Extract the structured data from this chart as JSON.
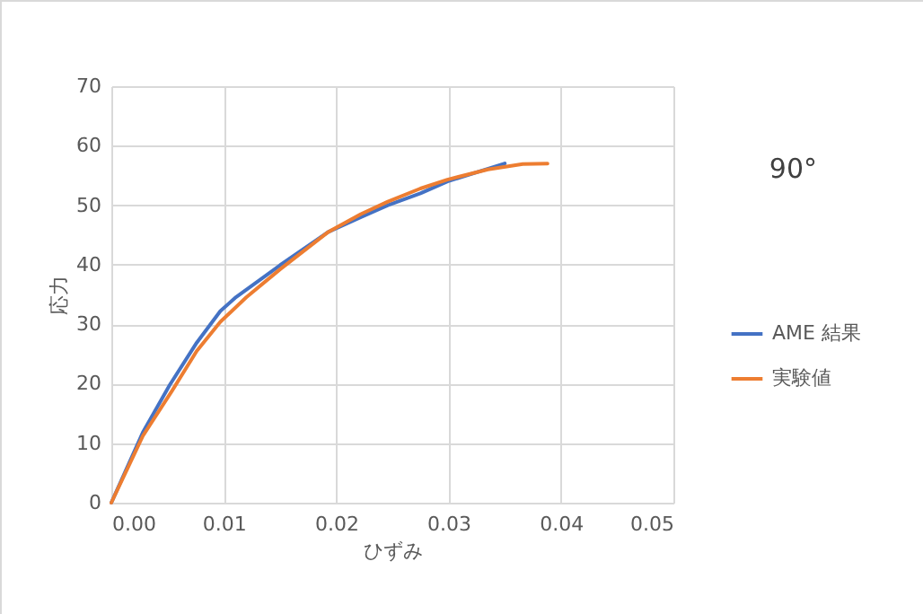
{
  "chart_data": {
    "type": "line",
    "title": "90°",
    "xlabel": "ひずみ",
    "ylabel": "応力",
    "xlim": [
      0,
      0.05
    ],
    "xticks": [
      {
        "value": 0,
        "label": "0.00"
      },
      {
        "value": 0.01,
        "label": "0.01"
      },
      {
        "value": 0.02,
        "label": "0.02"
      },
      {
        "value": 0.03,
        "label": "0.03"
      },
      {
        "value": 0.04,
        "label": "0.04"
      },
      {
        "value": 0.05,
        "label": "0.05"
      }
    ],
    "ylim": [
      0,
      70
    ],
    "yticks": [
      0,
      10,
      20,
      30,
      40,
      50,
      60,
      70
    ],
    "grid": true,
    "legend": "right",
    "marker": "none",
    "line_style": "solid",
    "series": [
      {
        "name": "AME 結果",
        "color": "#4472c4",
        "x": [
          0,
          0.0028,
          0.0052,
          0.0076,
          0.0097,
          0.011,
          0.015,
          0.0193,
          0.0222,
          0.0246,
          0.0275,
          0.0299,
          0.035
        ],
        "values": [
          0,
          11.8,
          19.8,
          26.9,
          32.2,
          34.4,
          39.9,
          45.5,
          48,
          50,
          52,
          54,
          57
        ]
      },
      {
        "name": "実験値",
        "color": "#ed7d31",
        "x": [
          0,
          0.0028,
          0.0054,
          0.0076,
          0.0097,
          0.012,
          0.015,
          0.0193,
          0.0222,
          0.0246,
          0.0275,
          0.0299,
          0.0335,
          0.0366,
          0.0388
        ],
        "values": [
          0,
          11.2,
          18.8,
          25.5,
          30.4,
          34.5,
          39.2,
          45.5,
          48.5,
          50.6,
          52.8,
          54.3,
          56,
          56.9,
          57
        ]
      }
    ]
  }
}
